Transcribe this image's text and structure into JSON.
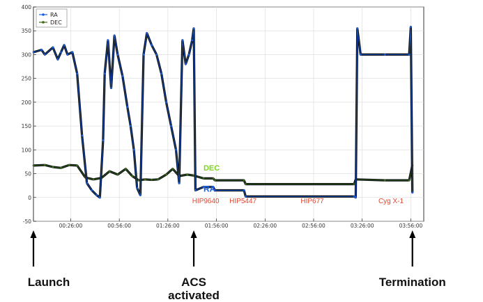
{
  "chart_data": {
    "type": "line",
    "title": "",
    "xlabel": "",
    "ylabel": "",
    "ylim": [
      -50,
      400
    ],
    "xlim": [
      "00:03:00",
      "04:04:00"
    ],
    "yticks": [
      -50,
      0,
      50,
      100,
      150,
      200,
      250,
      300,
      350,
      400
    ],
    "xticks": [
      "00:26:00",
      "00:56:00",
      "01:26:00",
      "01:56:00",
      "02:26:00",
      "02:56:00",
      "03:26:00",
      "03:56:00"
    ],
    "grid": true,
    "legend_position": "top-left",
    "series": [
      {
        "name": "RA",
        "color": "#1b5fe0",
        "points": [
          [
            "00:03:00",
            305
          ],
          [
            "00:08:00",
            310
          ],
          [
            "00:10:00",
            300
          ],
          [
            "00:15:00",
            315
          ],
          [
            "00:18:00",
            290
          ],
          [
            "00:20:00",
            305
          ],
          [
            "00:22:00",
            320
          ],
          [
            "00:24:00",
            300
          ],
          [
            "00:27:00",
            305
          ],
          [
            "00:30:00",
            260
          ],
          [
            "00:33:00",
            130
          ],
          [
            "00:36:00",
            30
          ],
          [
            "00:39:00",
            15
          ],
          [
            "00:42:00",
            5
          ],
          [
            "00:44:00",
            0
          ],
          [
            "00:46:00",
            120
          ],
          [
            "00:47:00",
            260
          ],
          [
            "00:49:00",
            330
          ],
          [
            "00:51:00",
            230
          ],
          [
            "00:53:00",
            340
          ],
          [
            "00:55:00",
            300
          ],
          [
            "00:58:00",
            255
          ],
          [
            "01:01:00",
            190
          ],
          [
            "01:03:00",
            150
          ],
          [
            "01:05:00",
            100
          ],
          [
            "01:07:00",
            20
          ],
          [
            "01:09:00",
            5
          ],
          [
            "01:11:00",
            300
          ],
          [
            "01:13:00",
            345
          ],
          [
            "01:16:00",
            320
          ],
          [
            "01:19:00",
            300
          ],
          [
            "01:22:00",
            260
          ],
          [
            "01:25:00",
            200
          ],
          [
            "01:28:00",
            150
          ],
          [
            "01:31:00",
            100
          ],
          [
            "01:33:00",
            30
          ],
          [
            "01:35:00",
            330
          ],
          [
            "01:37:00",
            280
          ],
          [
            "01:39:00",
            300
          ],
          [
            "01:41:00",
            330
          ],
          [
            "01:42:00",
            355
          ],
          [
            "01:43:00",
            15
          ],
          [
            "01:48:00",
            22
          ],
          [
            "01:54:00",
            22
          ],
          [
            "01:55:00",
            15
          ],
          [
            "02:13:00",
            15
          ],
          [
            "02:14:00",
            2
          ],
          [
            "03:21:00",
            2
          ],
          [
            "03:22:00",
            0
          ],
          [
            "03:23:00",
            355
          ],
          [
            "03:25:00",
            300
          ],
          [
            "03:40:00",
            300
          ],
          [
            "03:55:00",
            300
          ],
          [
            "03:56:00",
            358
          ],
          [
            "03:57:00",
            10
          ]
        ]
      },
      {
        "name": "DEC",
        "color": "#3d6b1a",
        "points": [
          [
            "00:03:00",
            67
          ],
          [
            "00:10:00",
            68
          ],
          [
            "00:15:00",
            64
          ],
          [
            "00:20:00",
            62
          ],
          [
            "00:25:00",
            68
          ],
          [
            "00:30:00",
            67
          ],
          [
            "00:35:00",
            42
          ],
          [
            "00:40:00",
            38
          ],
          [
            "00:45:00",
            41
          ],
          [
            "00:50:00",
            55
          ],
          [
            "00:55:00",
            48
          ],
          [
            "01:00:00",
            60
          ],
          [
            "01:04:00",
            45
          ],
          [
            "01:08:00",
            36
          ],
          [
            "01:12:00",
            38
          ],
          [
            "01:16:00",
            37
          ],
          [
            "01:20:00",
            38
          ],
          [
            "01:25:00",
            48
          ],
          [
            "01:29:00",
            60
          ],
          [
            "01:33:00",
            45
          ],
          [
            "01:38:00",
            48
          ],
          [
            "01:42:00",
            46
          ],
          [
            "01:48:00",
            40
          ],
          [
            "01:54:00",
            40
          ],
          [
            "01:55:00",
            36
          ],
          [
            "02:13:00",
            36
          ],
          [
            "02:14:00",
            28
          ],
          [
            "03:21:00",
            28
          ],
          [
            "03:22:00",
            38
          ],
          [
            "03:40:00",
            36
          ],
          [
            "03:55:00",
            36
          ],
          [
            "03:57:00",
            68
          ]
        ]
      }
    ],
    "annotations": [
      {
        "text": "DEC",
        "x": "01:48:00",
        "y": 57,
        "color": "#7ed321"
      },
      {
        "text": "RA",
        "x": "01:48:00",
        "y": 12,
        "color": "#1b5fe0"
      },
      {
        "text": "HIP9640",
        "x": "01:41:00",
        "y": -12,
        "color": "#e0462e"
      },
      {
        "text": "HIP5447",
        "x": "02:04:00",
        "y": -12,
        "color": "#e0462e"
      },
      {
        "text": "HIP677",
        "x": "02:48:00",
        "y": -12,
        "color": "#e0462e"
      },
      {
        "text": "Cyg X-1",
        "x": "03:36:00",
        "y": -12,
        "color": "#e0462e"
      }
    ],
    "markers": [
      {
        "text": "Launch",
        "x": "00:03:00"
      },
      {
        "text": "ACS\nactivated",
        "x": "01:42:00"
      },
      {
        "text": "Termination",
        "x": "03:57:00"
      }
    ]
  }
}
